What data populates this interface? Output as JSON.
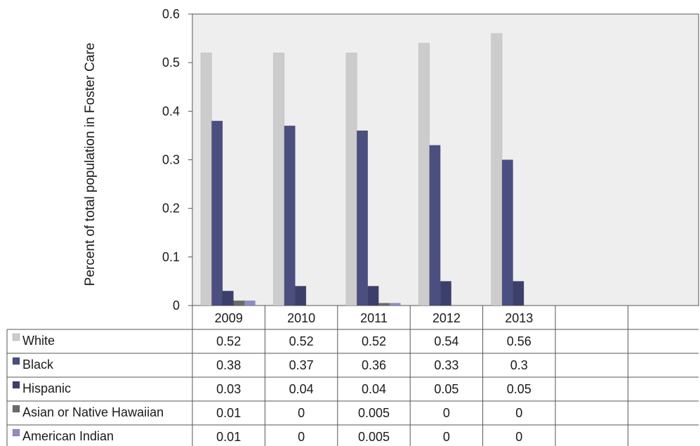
{
  "chart_data": {
    "type": "bar",
    "title": "",
    "xlabel": "",
    "ylabel": "Percent of total population in Foster Care",
    "ylim": [
      0,
      0.6
    ],
    "yticks": [
      "0",
      "0.1",
      "0.2",
      "0.3",
      "0.4",
      "0.5",
      "0.6"
    ],
    "grid": false,
    "legend": "data-table",
    "categories": [
      "2009",
      "2010",
      "2011",
      "2012",
      "2013"
    ],
    "series": [
      {
        "name": "White",
        "color": "#cccccc",
        "values": [
          0.52,
          0.52,
          0.52,
          0.54,
          0.56
        ],
        "labels": [
          "0.52",
          "0.52",
          "0.52",
          "0.54",
          "0.56"
        ]
      },
      {
        "name": "Black",
        "color": "#4a4f80",
        "values": [
          0.38,
          0.37,
          0.36,
          0.33,
          0.3
        ],
        "labels": [
          "0.38",
          "0.37",
          "0.36",
          "0.33",
          "0.3"
        ]
      },
      {
        "name": "Hispanic",
        "color": "#3d3f6b",
        "values": [
          0.03,
          0.04,
          0.04,
          0.05,
          0.05
        ],
        "labels": [
          "0.03",
          "0.04",
          "0.04",
          "0.05",
          "0.05"
        ]
      },
      {
        "name": "Asian or Native Hawaiian",
        "color": "#6b6b6b",
        "values": [
          0.01,
          0,
          0.005,
          0,
          0
        ],
        "labels": [
          "0.01",
          "0",
          "0.005",
          "0",
          "0"
        ]
      },
      {
        "name": "American Indian",
        "color": "#8a8ec4",
        "values": [
          0.01,
          0,
          0.005,
          0,
          0
        ],
        "labels": [
          "0.01",
          "0",
          "0.005",
          "0",
          "0"
        ]
      }
    ],
    "plot_background": "#eeeeee",
    "grid_color": "#555555"
  }
}
